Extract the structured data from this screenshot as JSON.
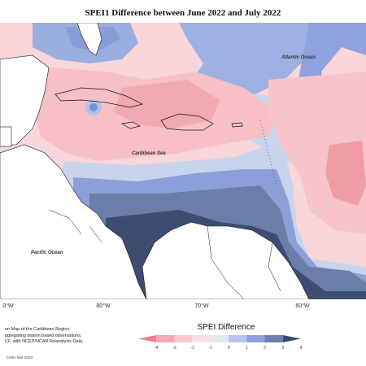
{
  "title": "SPEI1 Difference between June 2022 and July 2022",
  "labels": {
    "atlantic": "Atlantic Ocean",
    "caribbean": "Caribbean Sea",
    "pacific": "Pacific Ocean"
  },
  "longitude_ticks": [
    "0°W",
    "80°W",
    "70°W",
    "60°W"
  ],
  "footnote": {
    "line1": "on Map of the Caribbean Region",
    "line2": "ggregating station based observations,",
    "line3": "CF, with NCEP/NCAR Reanalysis Data."
  },
  "legend": {
    "title": "SPEI Difference",
    "ticks": [
      "-4",
      "-3",
      "-2",
      "-1",
      "0",
      "1",
      "2",
      "3",
      "4"
    ],
    "colors": [
      "#ef7f8a",
      "#f5a9b0",
      "#f9c9ce",
      "#fbe0e3",
      "#dcebf1",
      "#b6c6e8",
      "#8d9fdc",
      "#6a7fb0",
      "#3b4a72"
    ]
  },
  "credit": "CIMH Mar-2023"
}
